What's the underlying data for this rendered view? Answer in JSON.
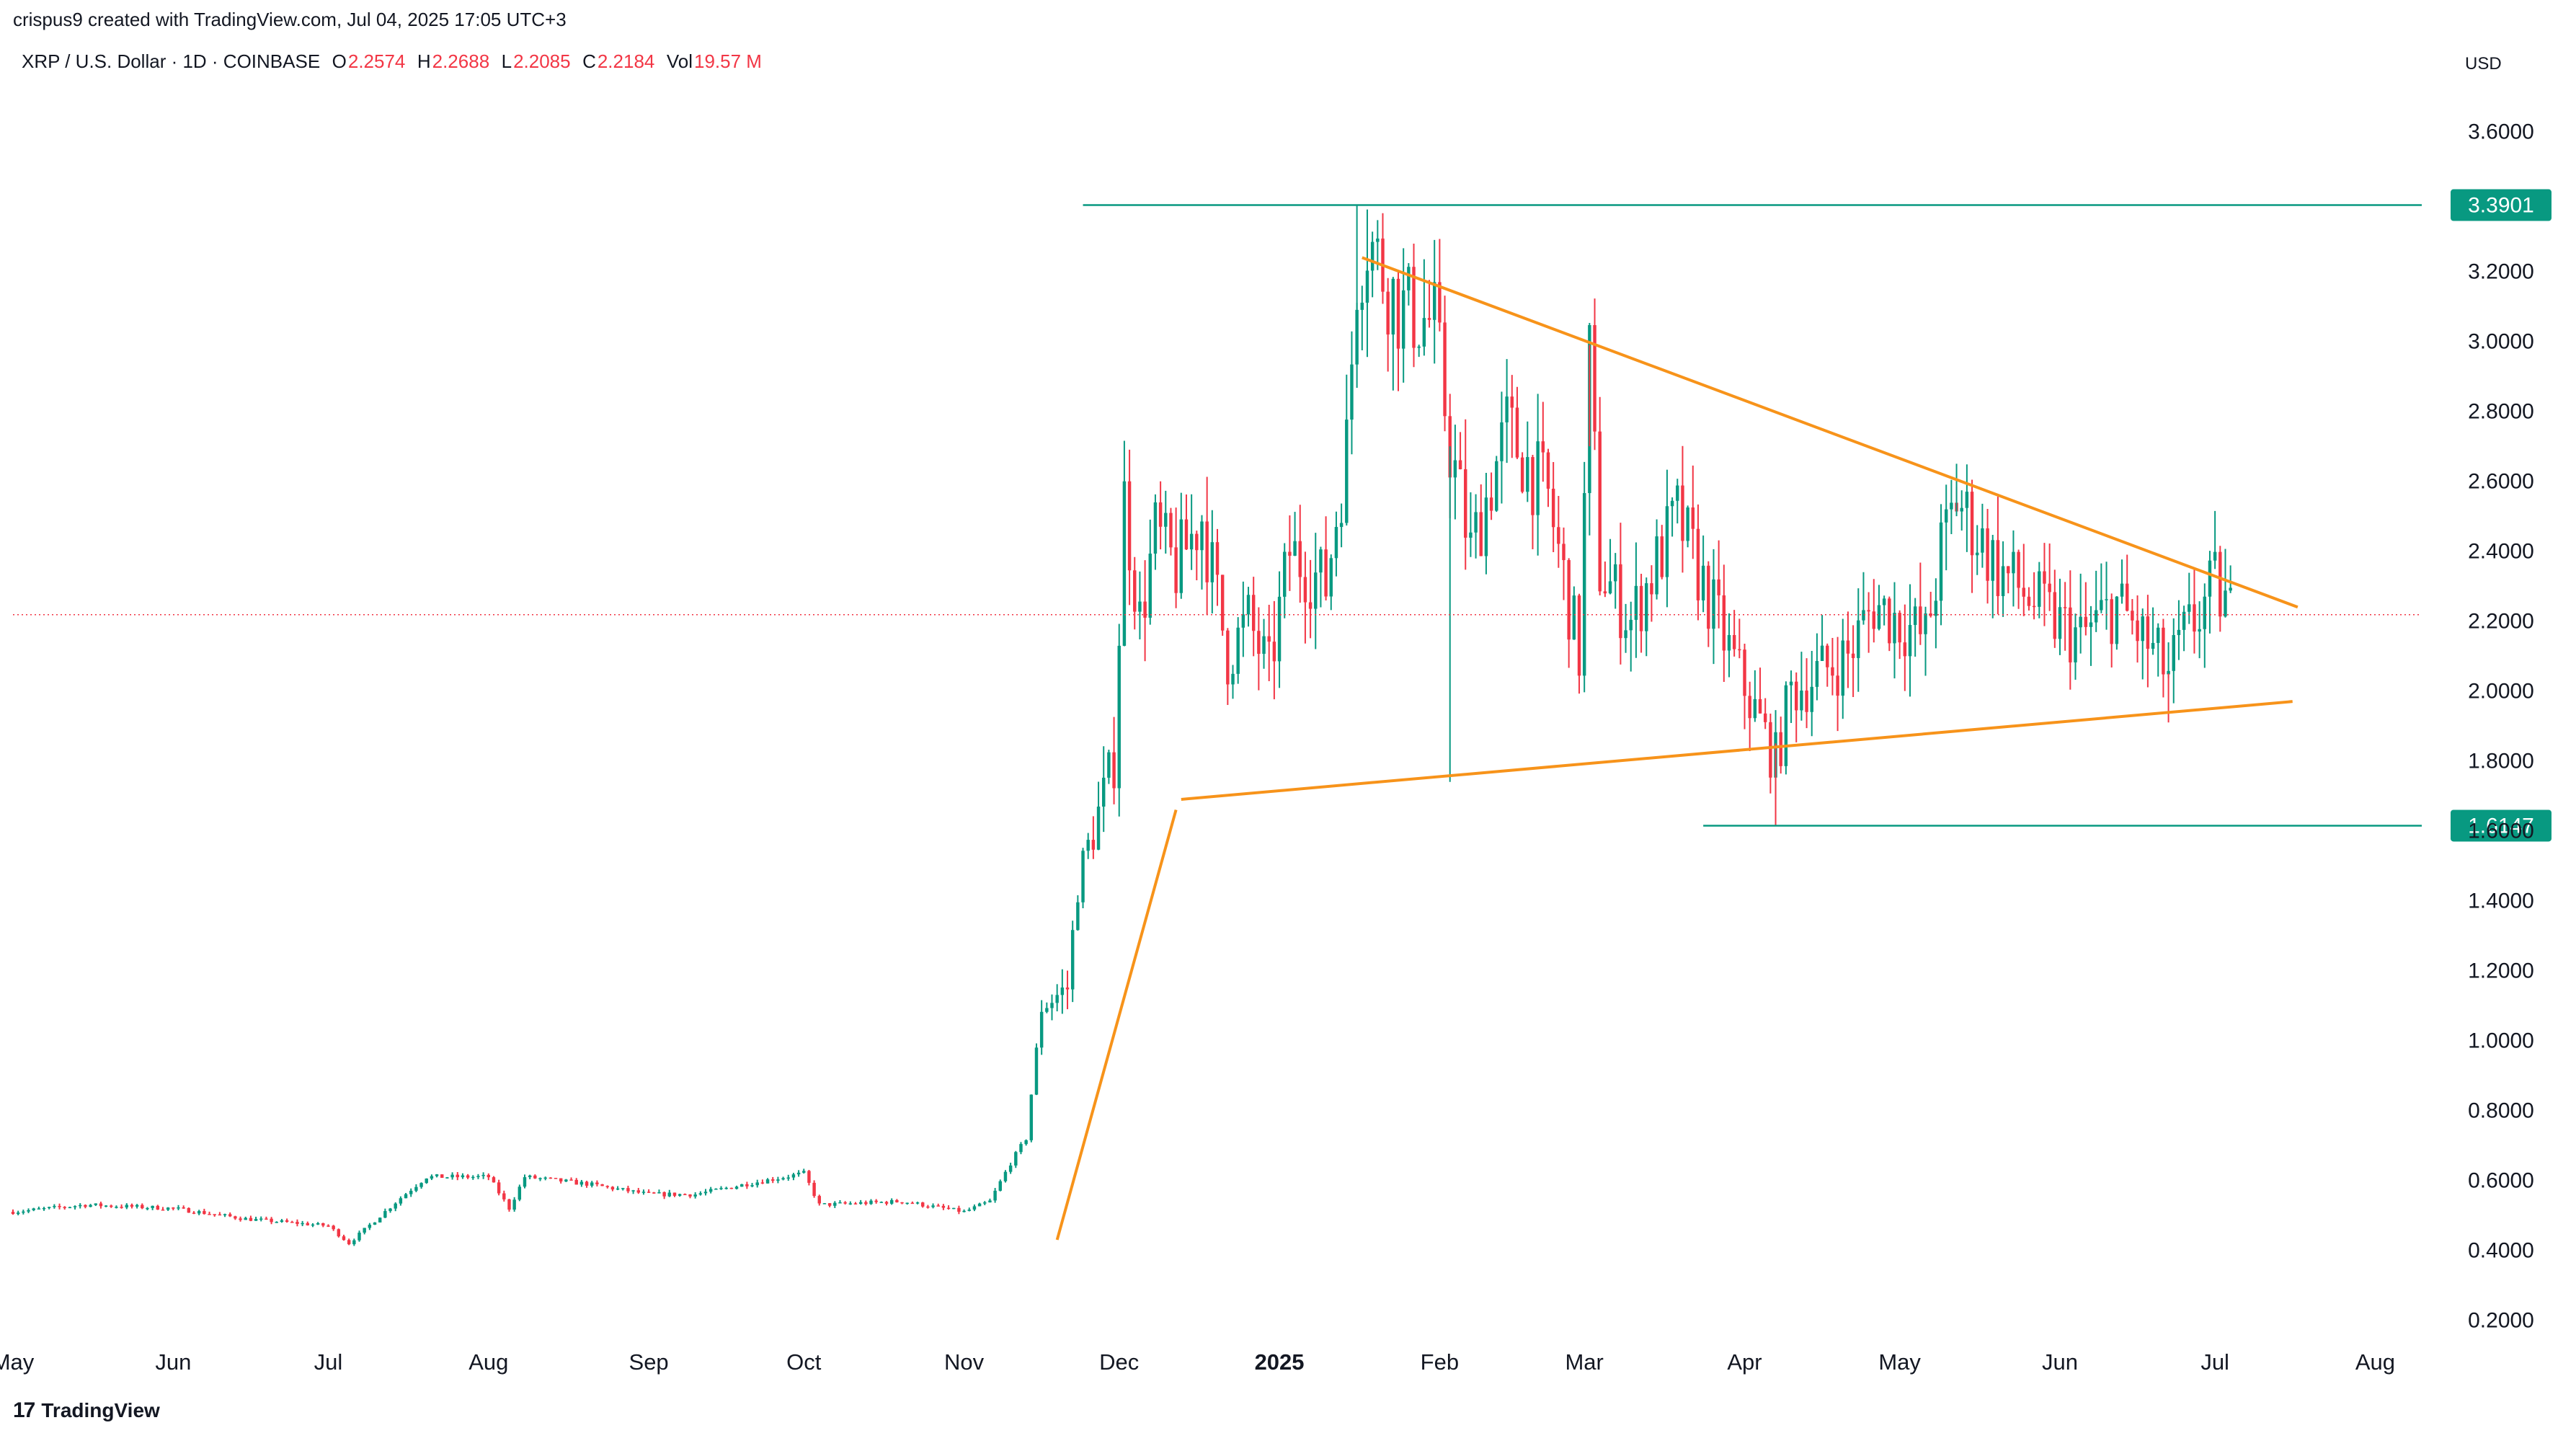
{
  "header": {
    "attribution": "crispus9 created with TradingView.com, Jul 04, 2025 17:05 UTC+3",
    "symbol": "XRP / U.S. Dollar · 1D · COINBASE",
    "o_label": "O",
    "o_value": "2.2574",
    "h_label": "H",
    "h_value": "2.2688",
    "l_label": "L",
    "l_value": "2.2085",
    "c_label": "C",
    "c_value": "2.2184",
    "vol_label": "Vol",
    "vol_value": "19.57 M"
  },
  "brand": {
    "logo": "17",
    "name": "TradingView"
  },
  "colors": {
    "up": "#089981",
    "down": "#f23645",
    "trendline": "#f7931a",
    "level": "#089981",
    "grid_text": "#131722"
  },
  "chart_data": {
    "type": "candlestick",
    "currency_label": "USD",
    "ylim": [
      0.1,
      3.75
    ],
    "y_ticks": [
      0.2,
      0.4,
      0.6,
      0.8,
      1.0,
      1.2,
      1.4,
      1.6,
      1.8,
      2.0,
      2.2,
      2.4,
      2.6,
      2.8,
      3.0,
      3.2,
      3.6
    ],
    "y_tick_labels": [
      "0.2000",
      "0.4000",
      "0.6000",
      "0.8000",
      "1.0000",
      "1.2000",
      "1.4000",
      "1.6000",
      "1.8000",
      "2.0000",
      "2.2000",
      "2.4000",
      "2.6000",
      "2.8000",
      "3.0000",
      "3.2000",
      "3.6000"
    ],
    "x_range": [
      "2024-05-01",
      "2025-08-10"
    ],
    "x_ticks": [
      {
        "date": "2024-05-01",
        "label": "May",
        "bold": false
      },
      {
        "date": "2024-06-01",
        "label": "Jun",
        "bold": false
      },
      {
        "date": "2024-07-01",
        "label": "Jul",
        "bold": false
      },
      {
        "date": "2024-08-01",
        "label": "Aug",
        "bold": false
      },
      {
        "date": "2024-09-01",
        "label": "Sep",
        "bold": false
      },
      {
        "date": "2024-10-01",
        "label": "Oct",
        "bold": false
      },
      {
        "date": "2024-11-01",
        "label": "Nov",
        "bold": false
      },
      {
        "date": "2024-12-01",
        "label": "Dec",
        "bold": false
      },
      {
        "date": "2025-01-01",
        "label": "2025",
        "bold": true
      },
      {
        "date": "2025-02-01",
        "label": "Feb",
        "bold": false
      },
      {
        "date": "2025-03-01",
        "label": "Mar",
        "bold": false
      },
      {
        "date": "2025-04-01",
        "label": "Apr",
        "bold": false
      },
      {
        "date": "2025-05-01",
        "label": "May",
        "bold": false
      },
      {
        "date": "2025-06-01",
        "label": "Jun",
        "bold": false
      },
      {
        "date": "2025-07-01",
        "label": "Jul",
        "bold": false
      },
      {
        "date": "2025-08-01",
        "label": "Aug",
        "bold": false
      }
    ],
    "anchors": [
      [
        "2024-05-01",
        0.51
      ],
      [
        "2024-05-15",
        0.53
      ],
      [
        "2024-06-01",
        0.52
      ],
      [
        "2024-06-15",
        0.49
      ],
      [
        "2024-07-01",
        0.47
      ],
      [
        "2024-07-05",
        0.42
      ],
      [
        "2024-07-15",
        0.55
      ],
      [
        "2024-07-20",
        0.61
      ],
      [
        "2024-08-01",
        0.61
      ],
      [
        "2024-08-05",
        0.52
      ],
      [
        "2024-08-08",
        0.61
      ],
      [
        "2024-08-20",
        0.59
      ],
      [
        "2024-09-01",
        0.56
      ],
      [
        "2024-09-10",
        0.56
      ],
      [
        "2024-09-20",
        0.59
      ],
      [
        "2024-10-01",
        0.62
      ],
      [
        "2024-10-04",
        0.53
      ],
      [
        "2024-10-20",
        0.54
      ],
      [
        "2024-11-01",
        0.51
      ],
      [
        "2024-11-06",
        0.54
      ],
      [
        "2024-11-10",
        0.65
      ],
      [
        "2024-11-13",
        0.72
      ],
      [
        "2024-11-16",
        1.1
      ],
      [
        "2024-11-21",
        1.15
      ],
      [
        "2024-11-23",
        1.45
      ],
      [
        "2024-11-30",
        1.8
      ],
      [
        "2024-12-02",
        2.55
      ],
      [
        "2024-12-05",
        2.2
      ],
      [
        "2024-12-08",
        2.45
      ],
      [
        "2024-12-12",
        2.35
      ],
      [
        "2024-12-17",
        2.5
      ],
      [
        "2024-12-22",
        2.1
      ],
      [
        "2024-12-26",
        2.2
      ],
      [
        "2024-12-30",
        2.05
      ],
      [
        "2025-01-03",
        2.4
      ],
      [
        "2025-01-10",
        2.3
      ],
      [
        "2025-01-14",
        2.7
      ],
      [
        "2025-01-16",
        3.2
      ],
      [
        "2025-01-18",
        3.3
      ],
      [
        "2025-01-24",
        3.1
      ],
      [
        "2025-01-31",
        3.05
      ],
      [
        "2025-02-03",
        2.7
      ],
      [
        "2025-02-07",
        2.4
      ],
      [
        "2025-02-14",
        2.75
      ],
      [
        "2025-02-22",
        2.55
      ],
      [
        "2025-02-28",
        2.1
      ],
      [
        "2025-03-02",
        2.95
      ],
      [
        "2025-03-04",
        2.35
      ],
      [
        "2025-03-10",
        2.2
      ],
      [
        "2025-03-13",
        2.3
      ],
      [
        "2025-03-19",
        2.5
      ],
      [
        "2025-03-28",
        2.15
      ],
      [
        "2025-04-07",
        1.8
      ],
      [
        "2025-04-10",
        2.0
      ],
      [
        "2025-04-21",
        2.1
      ],
      [
        "2025-04-26",
        2.25
      ],
      [
        "2025-05-06",
        2.15
      ],
      [
        "2025-05-09",
        2.4
      ],
      [
        "2025-05-12",
        2.55
      ],
      [
        "2025-05-20",
        2.35
      ],
      [
        "2025-05-31",
        2.2
      ],
      [
        "2025-06-05",
        2.15
      ],
      [
        "2025-06-12",
        2.25
      ],
      [
        "2025-06-22",
        2.05
      ],
      [
        "2025-06-25",
        2.15
      ],
      [
        "2025-07-01",
        2.3
      ],
      [
        "2025-07-04",
        2.22
      ]
    ],
    "trendlines": [
      {
        "name": "upper-trendline",
        "points": [
          [
            "2025-01-17",
            3.24
          ],
          [
            "2025-07-17",
            2.24
          ]
        ]
      },
      {
        "name": "lower-trendline",
        "points": [
          [
            "2024-12-13",
            1.69
          ],
          [
            "2025-07-16",
            1.97
          ]
        ]
      },
      {
        "name": "impulse-trendline",
        "points": [
          [
            "2024-11-19",
            0.43
          ],
          [
            "2024-12-12",
            1.66
          ]
        ]
      }
    ],
    "levels": [
      {
        "name": "resistance-level",
        "value": 3.3901,
        "label": "3.3901",
        "from": "2024-11-24"
      },
      {
        "name": "support-level",
        "value": 1.6147,
        "label": "1.6147",
        "from": "2025-03-24"
      }
    ],
    "last_price": 2.2184
  }
}
